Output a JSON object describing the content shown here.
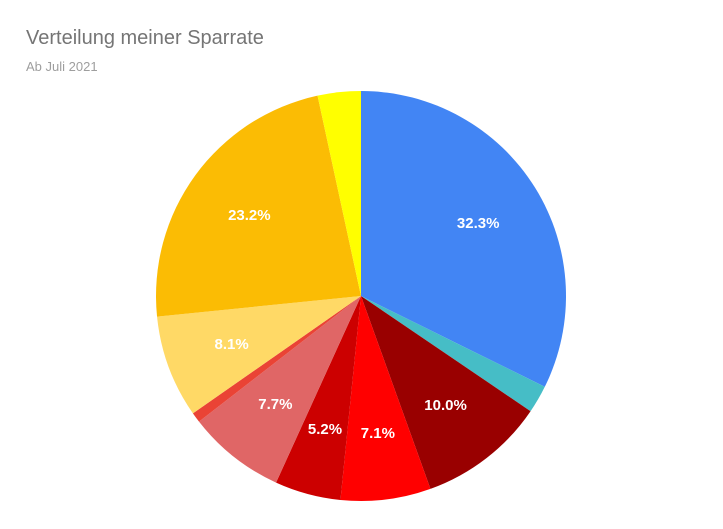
{
  "chart_data": {
    "type": "pie",
    "title": "Verteilung meiner Sparrate",
    "subtitle": "Ab Juli 2021",
    "start_angle_deg": 0,
    "direction": "clockwise",
    "slices": [
      {
        "value": 32.3,
        "label": "32.3%",
        "color": "#4285f4"
      },
      {
        "value": 2.2,
        "label": "",
        "color": "#46bdc6"
      },
      {
        "value": 10.0,
        "label": "10.0%",
        "color": "#990000"
      },
      {
        "value": 7.1,
        "label": "7.1%",
        "color": "#ff0000"
      },
      {
        "value": 5.2,
        "label": "5.2%",
        "color": "#cc0000"
      },
      {
        "value": 7.7,
        "label": "7.7%",
        "color": "#e06666"
      },
      {
        "value": 0.8,
        "label": "",
        "color": "#ea4335"
      },
      {
        "value": 8.1,
        "label": "8.1%",
        "color": "#ffd966"
      },
      {
        "value": 23.2,
        "label": "23.2%",
        "color": "#fbbc04"
      },
      {
        "value": 3.4,
        "label": "",
        "color": "#ffff00"
      }
    ]
  }
}
